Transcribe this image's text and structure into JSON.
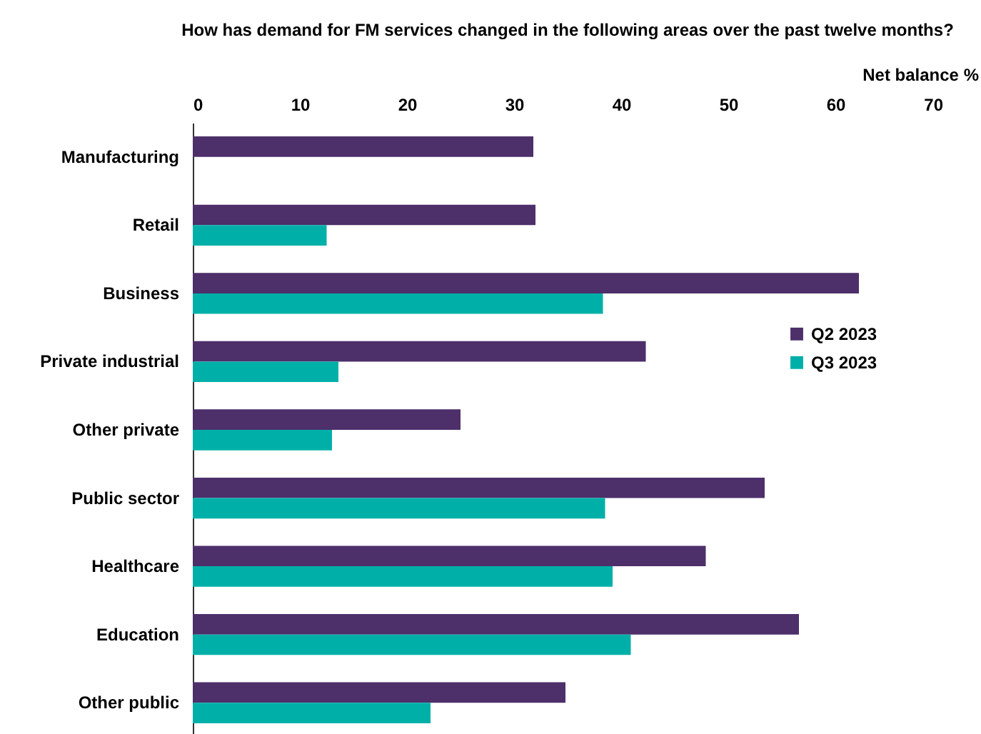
{
  "chart_data": {
    "type": "bar",
    "orientation": "horizontal",
    "title": "How has demand for FM services changed in the following areas over the past twelve months?",
    "xlabel": "Net balance %",
    "categories": [
      "Manufacturing",
      "Retail",
      "Business",
      "Private industrial",
      "Other private",
      "Public sector",
      "Healthcare",
      "Education",
      "Other public"
    ],
    "series": [
      {
        "name": "Q2 2023",
        "color": "#4d2f6a",
        "values": [
          31.8,
          32.0,
          62.2,
          42.3,
          25.0,
          53.4,
          47.9,
          56.6,
          34.8
        ]
      },
      {
        "name": "Q3 2023",
        "color": "#00b0a8",
        "values": [
          null,
          12.5,
          38.3,
          13.6,
          13.0,
          38.5,
          39.2,
          40.9,
          22.2
        ]
      }
    ],
    "xlim": [
      0,
      70
    ],
    "xticks": [
      0,
      10,
      20,
      30,
      40,
      50,
      60,
      70
    ],
    "grid": false,
    "legend": "right"
  }
}
